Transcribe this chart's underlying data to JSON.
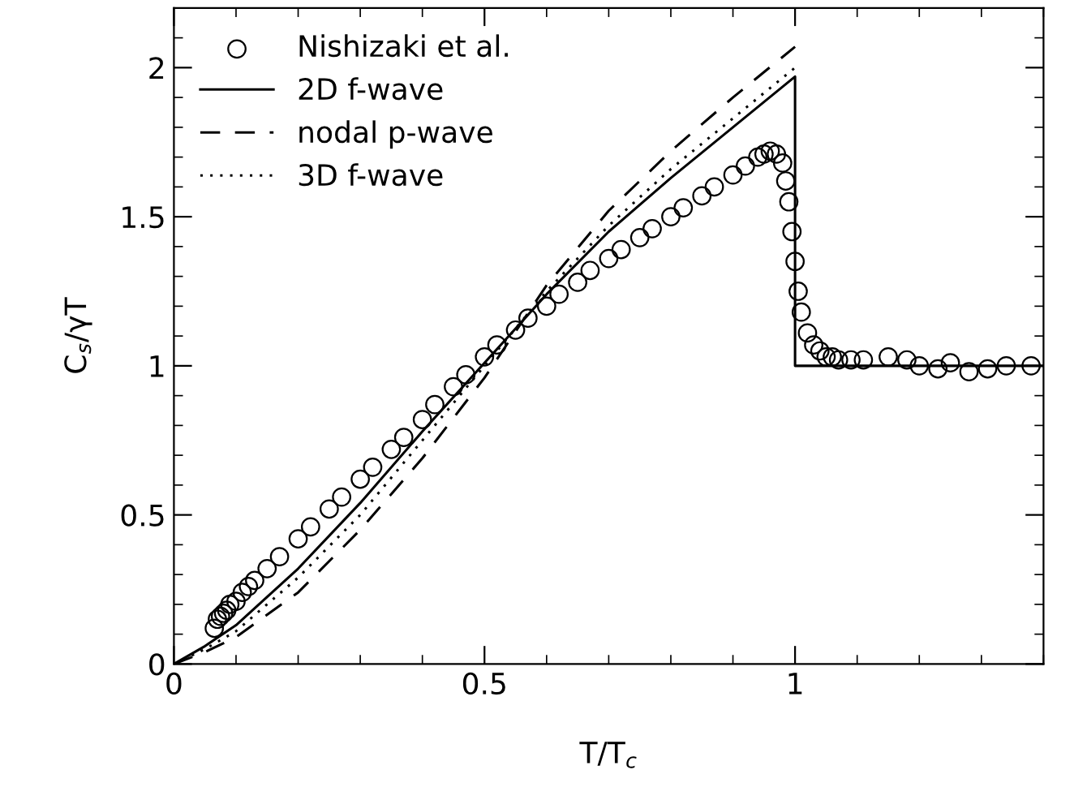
{
  "chart_data": {
    "type": "line",
    "xlabel": "T/T$_{c}$",
    "ylabel": "C$_{s}$/γT",
    "xlim": [
      0,
      1.4
    ],
    "ylim": [
      0,
      2.2
    ],
    "xticks": [
      0,
      0.5,
      1
    ],
    "yticks": [
      0,
      0.5,
      1,
      1.5,
      2
    ],
    "grid": false,
    "legend": "top left",
    "series": [
      {
        "name": "Nishizaki et al.",
        "type": "scatter",
        "marker": "circle",
        "color": "#000000",
        "x": [
          0.065,
          0.07,
          0.075,
          0.08,
          0.085,
          0.09,
          0.1,
          0.11,
          0.12,
          0.13,
          0.15,
          0.17,
          0.2,
          0.22,
          0.25,
          0.27,
          0.3,
          0.32,
          0.35,
          0.37,
          0.4,
          0.42,
          0.45,
          0.47,
          0.5,
          0.52,
          0.55,
          0.57,
          0.6,
          0.62,
          0.65,
          0.67,
          0.7,
          0.72,
          0.75,
          0.77,
          0.8,
          0.82,
          0.85,
          0.87,
          0.9,
          0.92,
          0.94,
          0.95,
          0.96,
          0.97,
          0.98,
          0.985,
          0.99,
          0.995,
          1.0,
          1.005,
          1.01,
          1.02,
          1.03,
          1.04,
          1.05,
          1.06,
          1.07,
          1.09,
          1.11,
          1.15,
          1.18,
          1.2,
          1.23,
          1.25,
          1.28,
          1.31,
          1.34,
          1.38
        ],
        "values": [
          0.12,
          0.15,
          0.16,
          0.17,
          0.18,
          0.2,
          0.21,
          0.24,
          0.26,
          0.28,
          0.32,
          0.36,
          0.42,
          0.46,
          0.52,
          0.56,
          0.62,
          0.66,
          0.72,
          0.76,
          0.82,
          0.87,
          0.93,
          0.97,
          1.03,
          1.07,
          1.12,
          1.16,
          1.2,
          1.24,
          1.28,
          1.32,
          1.36,
          1.39,
          1.43,
          1.46,
          1.5,
          1.53,
          1.57,
          1.6,
          1.64,
          1.67,
          1.7,
          1.71,
          1.72,
          1.71,
          1.68,
          1.62,
          1.55,
          1.45,
          1.35,
          1.25,
          1.18,
          1.11,
          1.07,
          1.05,
          1.03,
          1.03,
          1.02,
          1.02,
          1.02,
          1.03,
          1.02,
          1.0,
          0.99,
          1.01,
          0.98,
          0.99,
          1.0,
          1.0
        ]
      },
      {
        "name": "2D f-wave",
        "line_style": "solid",
        "color": "#000000",
        "x": [
          0,
          0.05,
          0.1,
          0.2,
          0.3,
          0.4,
          0.5,
          0.6,
          0.7,
          0.8,
          0.9,
          1.0,
          1.0,
          1.4
        ],
        "values": [
          0,
          0.06,
          0.13,
          0.32,
          0.54,
          0.78,
          1.01,
          1.24,
          1.45,
          1.63,
          1.8,
          1.97,
          1.0,
          1.0
        ]
      },
      {
        "name": "nodal p-wave",
        "line_style": "dashed",
        "color": "#000000",
        "x": [
          0,
          0.05,
          0.1,
          0.2,
          0.3,
          0.4,
          0.5,
          0.6,
          0.7,
          0.8,
          0.9,
          1.0
        ],
        "values": [
          0,
          0.04,
          0.09,
          0.24,
          0.45,
          0.69,
          0.96,
          1.27,
          1.52,
          1.72,
          1.9,
          2.07
        ]
      },
      {
        "name": "3D f-wave",
        "line_style": "dotted",
        "color": "#000000",
        "x": [
          0,
          0.05,
          0.1,
          0.2,
          0.3,
          0.4,
          0.5,
          0.6,
          0.7,
          0.8,
          0.9,
          1.0
        ],
        "values": [
          0,
          0.05,
          0.11,
          0.29,
          0.5,
          0.75,
          1.0,
          1.25,
          1.47,
          1.66,
          1.83,
          2.0
        ]
      }
    ]
  }
}
